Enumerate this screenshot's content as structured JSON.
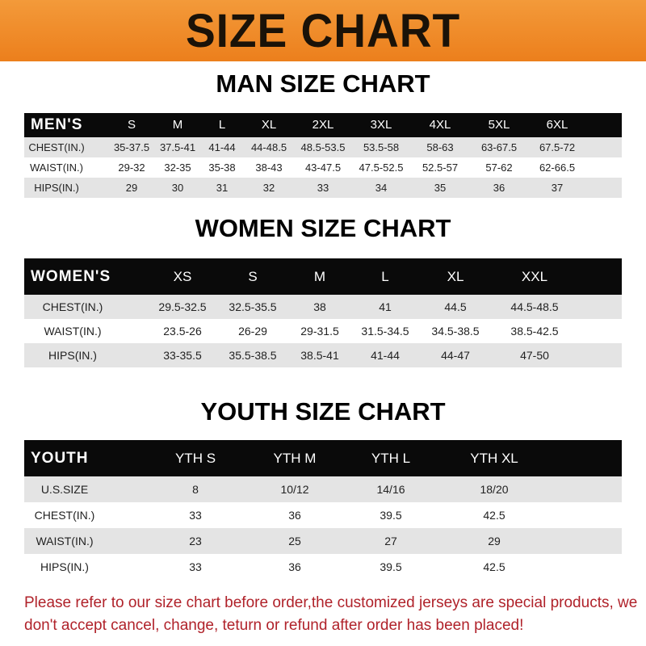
{
  "banner_title": "SIZE CHART",
  "men": {
    "title": "MAN SIZE CHART",
    "header": "MEN'S",
    "sizes": [
      "S",
      "M",
      "L",
      "XL",
      "2XL",
      "3XL",
      "4XL",
      "5XL",
      "6XL"
    ],
    "rows": [
      {
        "label": "CHEST(IN.)",
        "values": [
          "35-37.5",
          "37.5-41",
          "41-44",
          "44-48.5",
          "48.5-53.5",
          "53.5-58",
          "58-63",
          "63-67.5",
          "67.5-72"
        ]
      },
      {
        "label": "WAIST(IN.)",
        "values": [
          "29-32",
          "32-35",
          "35-38",
          "38-43",
          "43-47.5",
          "47.5-52.5",
          "52.5-57",
          "57-62",
          "62-66.5"
        ]
      },
      {
        "label": "HIPS(IN.)",
        "values": [
          "29",
          "30",
          "31",
          "32",
          "33",
          "34",
          "35",
          "36",
          "37"
        ]
      }
    ]
  },
  "women": {
    "title": "WOMEN SIZE CHART",
    "header": "WOMEN'S",
    "sizes": [
      "XS",
      "S",
      "M",
      "L",
      "XL",
      "XXL"
    ],
    "rows": [
      {
        "label": "CHEST(IN.)",
        "values": [
          "29.5-32.5",
          "32.5-35.5",
          "38",
          "41",
          "44.5",
          "44.5-48.5"
        ]
      },
      {
        "label": "WAIST(IN.)",
        "values": [
          "23.5-26",
          "26-29",
          "29-31.5",
          "31.5-34.5",
          "34.5-38.5",
          "38.5-42.5"
        ]
      },
      {
        "label": "HIPS(IN.)",
        "values": [
          "33-35.5",
          "35.5-38.5",
          "38.5-41",
          "41-44",
          "44-47",
          "47-50"
        ]
      }
    ]
  },
  "youth": {
    "title": "YOUTH SIZE CHART",
    "header": "YOUTH",
    "sizes": [
      "YTH S",
      "YTH M",
      "YTH L",
      "YTH XL"
    ],
    "rows": [
      {
        "label": "U.S.SIZE",
        "values": [
          "8",
          "10/12",
          "14/16",
          "18/20"
        ]
      },
      {
        "label": "CHEST(IN.)",
        "values": [
          "33",
          "36",
          "39.5",
          "42.5"
        ]
      },
      {
        "label": "WAIST(IN.)",
        "values": [
          "23",
          "25",
          "27",
          "29"
        ]
      },
      {
        "label": "HIPS(IN.)",
        "values": [
          "33",
          "36",
          "39.5",
          "42.5"
        ]
      }
    ]
  },
  "note": "Please refer to our size chart before order,the customized jerseys are special products, we don't accept cancel, change, teturn or refund after order has been placed!"
}
